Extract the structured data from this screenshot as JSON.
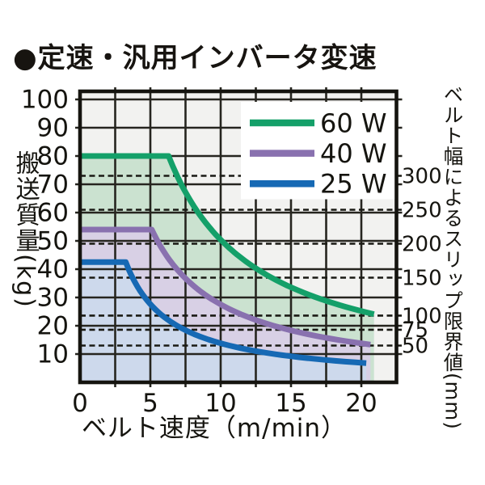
{
  "title": "●定速・汎用インバータ変速",
  "chart_data": {
    "type": "area",
    "xlabel": "ベルト速度（m/min）",
    "ylabel_left": "搬送質量",
    "ylabel_left_unit": "(kg)",
    "ylabel_right": "ベルト幅によるスリップ限界値",
    "ylabel_right_unit": "(mm)",
    "x_range": [
      0,
      22.5
    ],
    "x_grid_step": 2.5,
    "x_ticks": [
      0,
      5,
      10,
      15,
      20
    ],
    "y_range": [
      0,
      100
    ],
    "y_grid_step": 10,
    "y_ticks": [
      100,
      90,
      80,
      70,
      60,
      50,
      40,
      30,
      20,
      10
    ],
    "grid": "on",
    "legend_position": "top-right-inside-white-backing",
    "series": [
      {
        "name": "60 W",
        "power_w": 60,
        "max_load_kg": 80,
        "flat_until_m_min": 6.3,
        "end_speed_m_min": 20.9,
        "end_load_kg": 24,
        "line_color": "#14a069",
        "fill_color": "#cbe2d0"
      },
      {
        "name": "40 W",
        "power_w": 40,
        "max_load_kg": 54,
        "flat_until_m_min": 5.1,
        "end_speed_m_min": 20.65,
        "end_load_kg": 13.3,
        "line_color": "#8971af",
        "fill_color": "#d8d0e5"
      },
      {
        "name": "25 W",
        "power_w": 25,
        "max_load_kg": 42.5,
        "flat_until_m_min": 3.25,
        "end_speed_m_min": 20.35,
        "end_load_kg": 6.8,
        "line_color": "#1669b4",
        "fill_color": "#cdd9ec"
      }
    ],
    "slip_limit_lines": [
      {
        "label": "300",
        "belt_width_mm": 300,
        "load_kg": 73
      },
      {
        "label": "250",
        "belt_width_mm": 250,
        "load_kg": 61
      },
      {
        "label": "200",
        "belt_width_mm": 200,
        "load_kg": 49
      },
      {
        "label": "150",
        "belt_width_mm": 150,
        "load_kg": 37
      },
      {
        "label": "100",
        "belt_width_mm": 100,
        "load_kg": 23.6
      },
      {
        "label": "75",
        "belt_width_mm": 75,
        "load_kg": 18.6
      },
      {
        "label": "50",
        "belt_width_mm": 50,
        "load_kg": 13
      }
    ],
    "colors": {
      "plot_background": "#f2f2f0",
      "grid_line": "#26251f",
      "dashed_line": "#1a1a14",
      "border": "#15140f",
      "legend_backing": "#ffffff",
      "text": "#15140f"
    }
  }
}
